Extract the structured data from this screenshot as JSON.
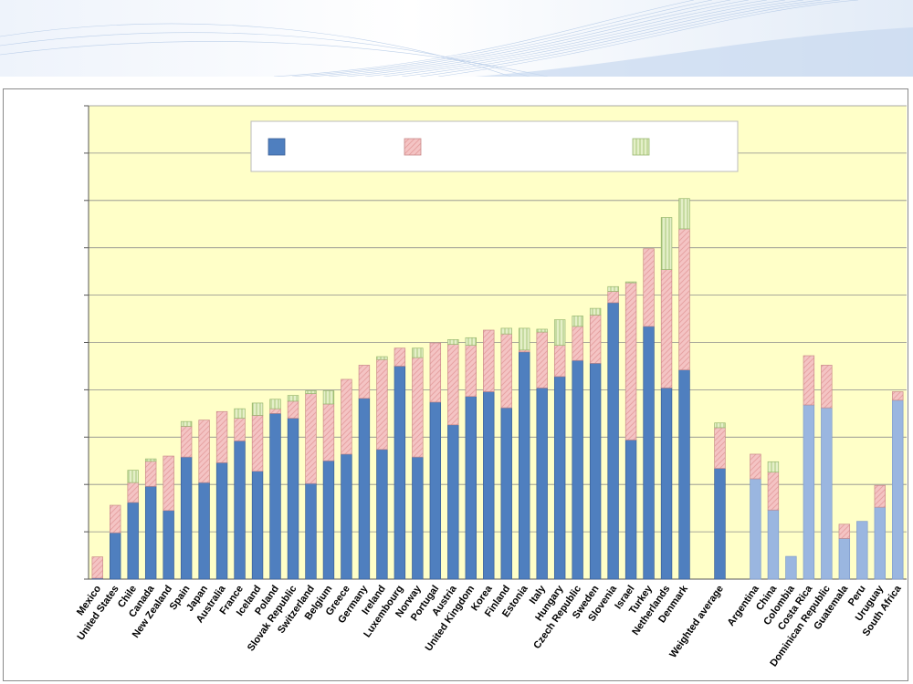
{
  "chart_data": {
    "type": "bar",
    "stacked": true,
    "title": "",
    "xlabel": "",
    "ylabel": "",
    "ylim": [
      0,
      10
    ],
    "yticks": [
      0,
      1,
      2,
      3,
      4,
      5,
      6,
      7,
      8,
      9,
      10
    ],
    "grid": true,
    "legend_position": "top-center",
    "series_colors": [
      "#4f7fbf",
      "#f4c4c4",
      "#cfe3a6"
    ],
    "highlight_color": "#9ab6e0",
    "plot_background": "#ffffc8",
    "legend_entries": [
      "",
      "",
      ""
    ],
    "categories": [
      "Mexico",
      "United States",
      "Chile",
      "Canada",
      "New Zealand",
      "Spain",
      "Japan",
      "Australia",
      "France",
      "Iceland",
      "Poland",
      "Slovak Republic",
      "Switzerland",
      "Belgium",
      "Greece",
      "Germany",
      "Ireland",
      "Luxembourg",
      "Norway",
      "Portugal",
      "Austria",
      "United Kingdom",
      "Korea",
      "Finland",
      "Estonia",
      "Italy",
      "Hungary",
      "Czech Republic",
      "Sweden",
      "Slovenia",
      "Israel",
      "Turkey",
      "Netherlands",
      "Denmark",
      "",
      "Weighted average",
      "",
      "Argentina",
      "China",
      "Colombia",
      "Costa Rica",
      "Dominican Republic",
      "Guatemala",
      "Peru",
      "Uruguay",
      "South Africa"
    ],
    "highlight": [
      false,
      false,
      false,
      false,
      false,
      false,
      false,
      false,
      false,
      false,
      false,
      false,
      false,
      false,
      false,
      false,
      false,
      false,
      false,
      false,
      false,
      false,
      false,
      false,
      false,
      false,
      false,
      false,
      false,
      false,
      false,
      false,
      false,
      false,
      false,
      false,
      false,
      true,
      true,
      true,
      true,
      true,
      true,
      true,
      true,
      true
    ],
    "series": [
      {
        "values": [
          0.02,
          0.98,
          1.62,
          1.96,
          1.45,
          2.58,
          2.04,
          2.46,
          2.92,
          2.28,
          3.5,
          3.4,
          2.02,
          2.5,
          2.64,
          3.82,
          2.74,
          4.5,
          2.58,
          3.74,
          3.26,
          3.86,
          3.96,
          3.62,
          4.8,
          4.04,
          4.28,
          4.62,
          4.56,
          5.84,
          2.94,
          5.34,
          4.04,
          4.42,
          null,
          2.34,
          null,
          2.12,
          1.46,
          0.48,
          3.68,
          3.62,
          0.86,
          1.22,
          1.52,
          3.78
        ]
      },
      {
        "values": [
          0.45,
          0.58,
          0.42,
          0.53,
          1.15,
          0.65,
          1.32,
          1.08,
          0.48,
          1.18,
          0.1,
          0.36,
          1.9,
          1.2,
          1.58,
          0.7,
          1.9,
          0.38,
          2.1,
          1.25,
          1.7,
          1.08,
          1.3,
          1.56,
          0.04,
          1.18,
          0.66,
          0.72,
          1.02,
          0.24,
          3.32,
          1.64,
          2.5,
          2.98,
          null,
          0.86,
          null,
          0.52,
          0.8,
          0.0,
          1.04,
          0.9,
          0.3,
          0.0,
          0.46,
          0.18
        ]
      },
      {
        "values": [
          0.0,
          0.0,
          0.26,
          0.05,
          0.0,
          0.1,
          0.0,
          0.0,
          0.2,
          0.26,
          0.2,
          0.12,
          0.06,
          0.28,
          0.0,
          0.0,
          0.06,
          0.0,
          0.2,
          0.0,
          0.1,
          0.16,
          0.0,
          0.12,
          0.46,
          0.06,
          0.54,
          0.22,
          0.14,
          0.1,
          0.02,
          0.0,
          1.1,
          0.64,
          null,
          0.1,
          null,
          0.0,
          0.22,
          0.0,
          0.0,
          0.0,
          0.0,
          0.0,
          0.0,
          0.0
        ]
      }
    ]
  }
}
